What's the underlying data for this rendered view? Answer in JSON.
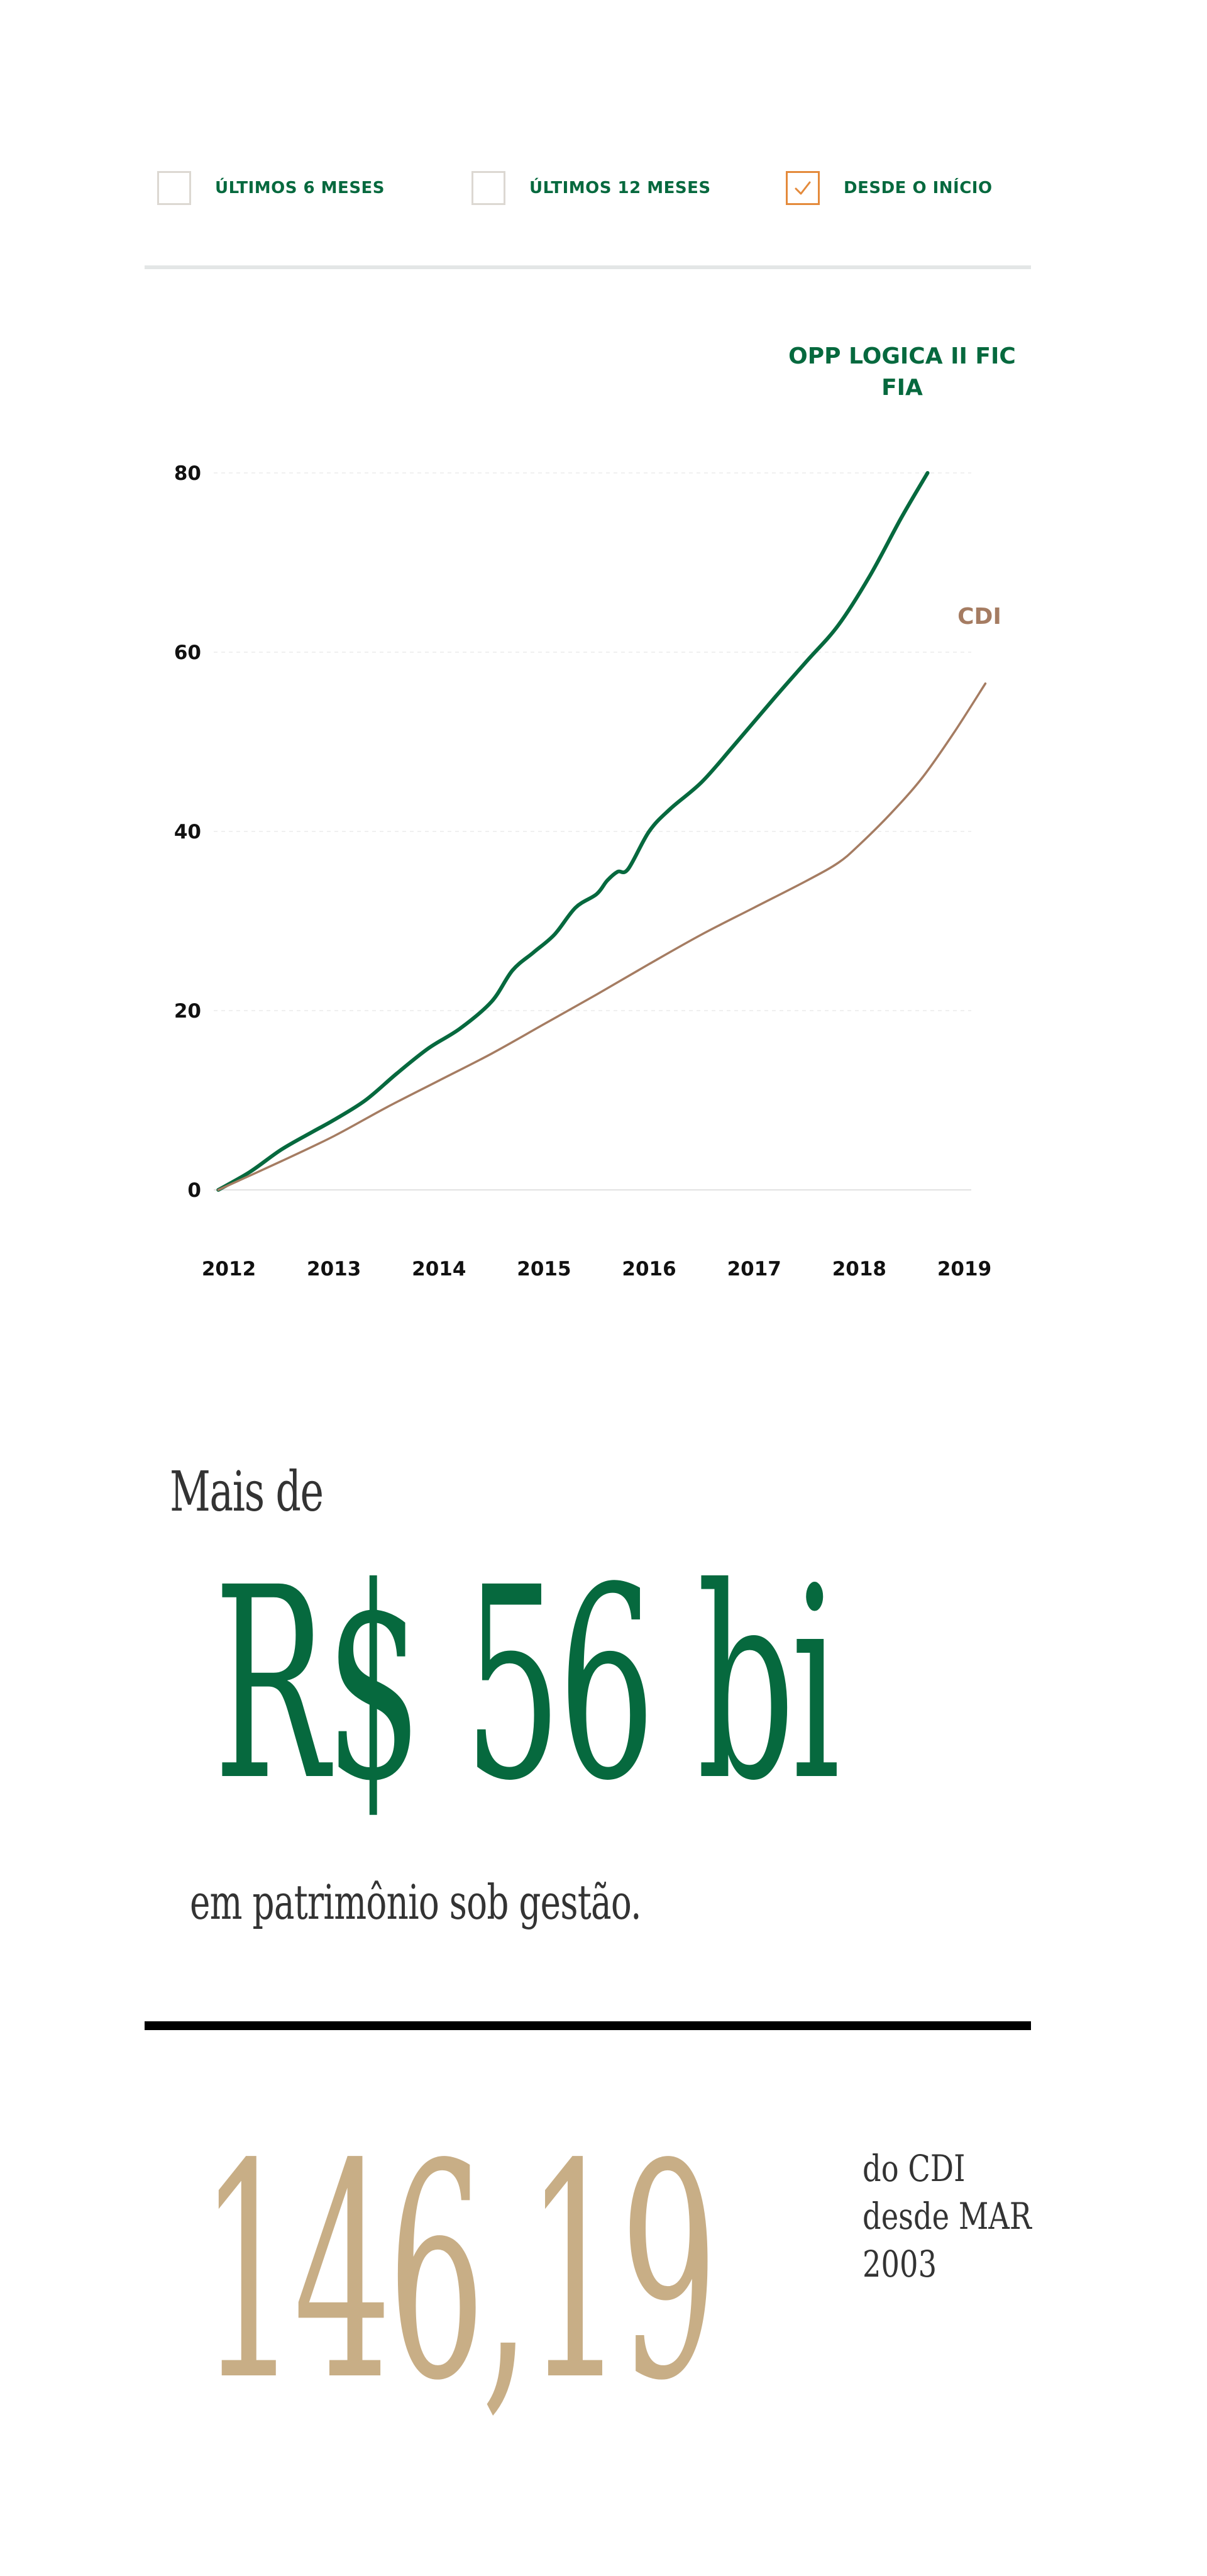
{
  "filters": [
    {
      "label": "ÚLTIMOS 6 MESES",
      "checked": false
    },
    {
      "label": "ÚLTIMOS 12 MESES",
      "checked": false
    },
    {
      "label": "DESDE O INÍCIO",
      "checked": true
    }
  ],
  "colors": {
    "fund": "#06693e",
    "cdi": "#a57c62",
    "checkbox_checked": "#e48a3b",
    "checkbox_unchecked": "#dcd8d2",
    "gold": "#c8ae86"
  },
  "chart_data": {
    "type": "line",
    "x_ticks": [
      "2012",
      "2013",
      "2014",
      "2015",
      "2016",
      "2017",
      "2018",
      "2019"
    ],
    "y_ticks": [
      0,
      20,
      40,
      60,
      80
    ],
    "xlim": [
      2012,
      2019
    ],
    "ylim": [
      0,
      80
    ],
    "grid": true,
    "series": [
      {
        "name": "OPP LOGICA II FIC FIA",
        "color": "#06693e",
        "points": [
          [
            2011.9,
            0
          ],
          [
            2012.2,
            2
          ],
          [
            2012.5,
            4.5
          ],
          [
            2012.8,
            6.5
          ],
          [
            2013.0,
            7.8
          ],
          [
            2013.3,
            10
          ],
          [
            2013.6,
            13
          ],
          [
            2013.9,
            15.8
          ],
          [
            2014.2,
            18
          ],
          [
            2014.5,
            21
          ],
          [
            2014.7,
            24.5
          ],
          [
            2014.9,
            26.5
          ],
          [
            2015.1,
            28.5
          ],
          [
            2015.3,
            31.5
          ],
          [
            2015.5,
            33
          ],
          [
            2015.6,
            34.5
          ],
          [
            2015.7,
            35.5
          ],
          [
            2015.8,
            35.8
          ],
          [
            2016.0,
            40
          ],
          [
            2016.2,
            42.5
          ],
          [
            2016.5,
            45.5
          ],
          [
            2016.8,
            49.5
          ],
          [
            2017.2,
            55
          ],
          [
            2017.5,
            59
          ],
          [
            2017.8,
            63
          ],
          [
            2018.1,
            68.5
          ],
          [
            2018.4,
            75
          ],
          [
            2018.65,
            80
          ]
        ]
      },
      {
        "name": "CDI",
        "color": "#a57c62",
        "points": [
          [
            2011.9,
            0
          ],
          [
            2012.5,
            3.2
          ],
          [
            2013.0,
            6
          ],
          [
            2013.5,
            9.2
          ],
          [
            2014.0,
            12.2
          ],
          [
            2014.5,
            15.2
          ],
          [
            2015.0,
            18.5
          ],
          [
            2015.5,
            21.8
          ],
          [
            2016.0,
            25.2
          ],
          [
            2016.5,
            28.5
          ],
          [
            2017.0,
            31.5
          ],
          [
            2017.5,
            34.5
          ],
          [
            2017.8,
            36.5
          ],
          [
            2018.0,
            38.5
          ],
          [
            2018.3,
            42
          ],
          [
            2018.6,
            46
          ],
          [
            2018.9,
            51
          ],
          [
            2019.2,
            56.5
          ]
        ]
      }
    ]
  },
  "aum": {
    "prefix": "Mais de",
    "value": "R$ 56 bi",
    "suffix": "em patrimônio sob gestão."
  },
  "performance": {
    "value": "146,19",
    "caption": "do CDI desde MAR 2003"
  }
}
